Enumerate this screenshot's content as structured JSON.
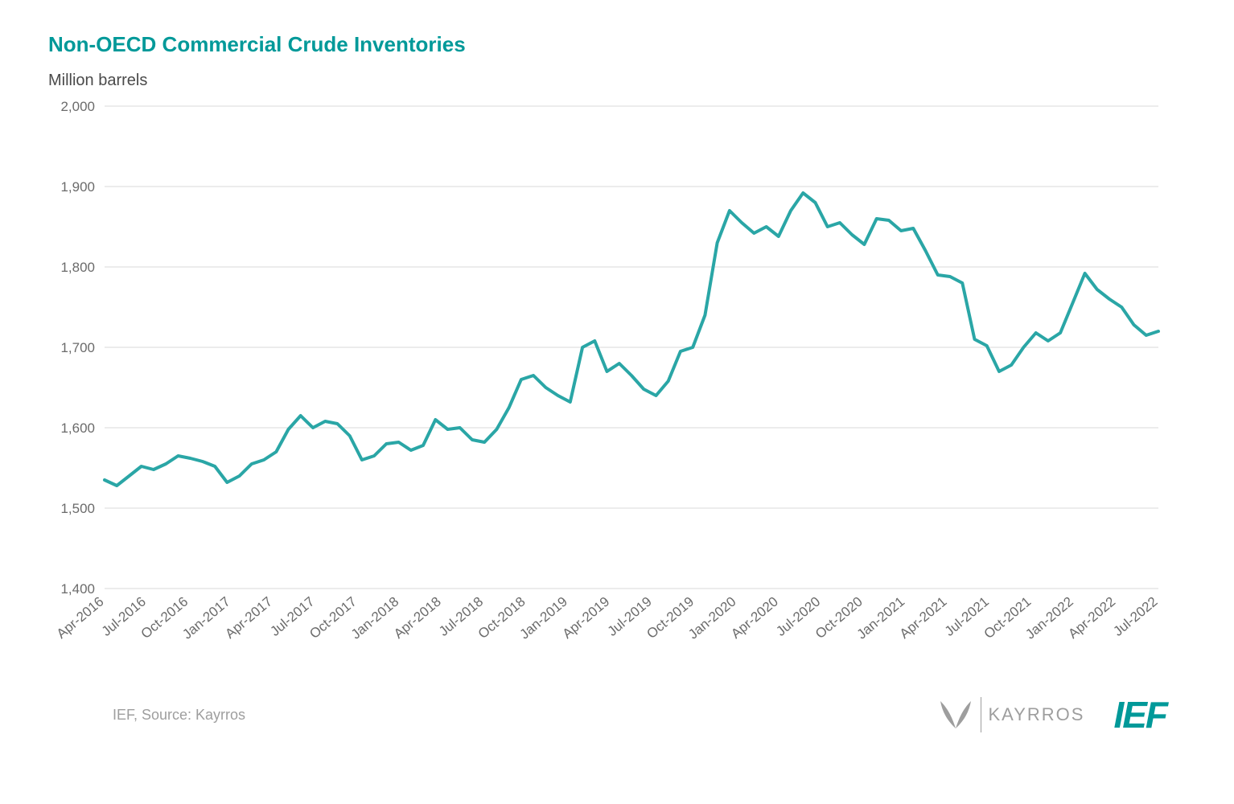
{
  "chart": {
    "type": "line",
    "title": "Non-OECD Commercial Crude Inventories",
    "title_color": "#009999",
    "title_fontsize": 26,
    "subtitle": "Million barrels",
    "subtitle_color": "#4a4a4a",
    "subtitle_fontsize": 20,
    "line_color": "#2aa6a6",
    "line_width": 4,
    "background_color": "#ffffff",
    "grid_color": "#d9d9d9",
    "axis_label_color": "#6b6b6b",
    "axis_label_fontsize": 17,
    "ylim": [
      1400,
      2000
    ],
    "ytick_step": 100,
    "yticks": [
      1400,
      1500,
      1600,
      1700,
      1800,
      1900,
      2000
    ],
    "xlabels": [
      "Apr-2016",
      "Jul-2016",
      "Oct-2016",
      "Jan-2017",
      "Apr-2017",
      "Jul-2017",
      "Oct-2017",
      "Jan-2018",
      "Apr-2018",
      "Jul-2018",
      "Oct-2018",
      "Jan-2019",
      "Apr-2019",
      "Jul-2019",
      "Oct-2019",
      "Jan-2020",
      "Apr-2020",
      "Jul-2020",
      "Oct-2020",
      "Jan-2021",
      "Apr-2021",
      "Jul-2021",
      "Oct-2021",
      "Jan-2022",
      "Apr-2022",
      "Jul-2022"
    ],
    "data": [
      1535,
      1528,
      1540,
      1552,
      1548,
      1555,
      1565,
      1562,
      1558,
      1552,
      1532,
      1540,
      1555,
      1560,
      1570,
      1598,
      1615,
      1600,
      1608,
      1605,
      1590,
      1560,
      1565,
      1580,
      1582,
      1572,
      1578,
      1610,
      1598,
      1600,
      1585,
      1582,
      1598,
      1625,
      1660,
      1665,
      1650,
      1640,
      1632,
      1700,
      1708,
      1670,
      1680,
      1665,
      1648,
      1640,
      1658,
      1695,
      1700,
      1740,
      1830,
      1870,
      1855,
      1842,
      1850,
      1838,
      1870,
      1892,
      1880,
      1850,
      1855,
      1840,
      1828,
      1860,
      1858,
      1845,
      1848,
      1820,
      1790,
      1788,
      1780,
      1710,
      1702,
      1670,
      1678,
      1700,
      1718,
      1708,
      1718,
      1755,
      1792,
      1772,
      1760,
      1750,
      1728,
      1715,
      1720
    ]
  },
  "footer": {
    "source_text": "IEF, Source: Kayrros",
    "kayrros_label": "KAYRROS",
    "ief_label": "IEF",
    "ief_color": "#009999",
    "logo_gray": "#9e9e9e"
  }
}
